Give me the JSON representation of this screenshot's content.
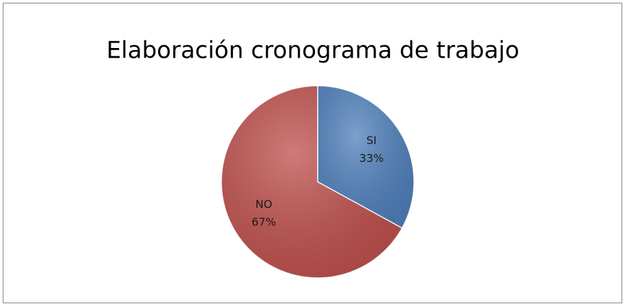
{
  "chart_data": {
    "type": "pie",
    "title": "Elaboración cronograma de trabajo",
    "categories": [
      "SI",
      "NO"
    ],
    "values": [
      33,
      67
    ],
    "value_labels": [
      "33%",
      "67%"
    ],
    "colors": [
      "#4f81bd",
      "#c0504d"
    ]
  }
}
